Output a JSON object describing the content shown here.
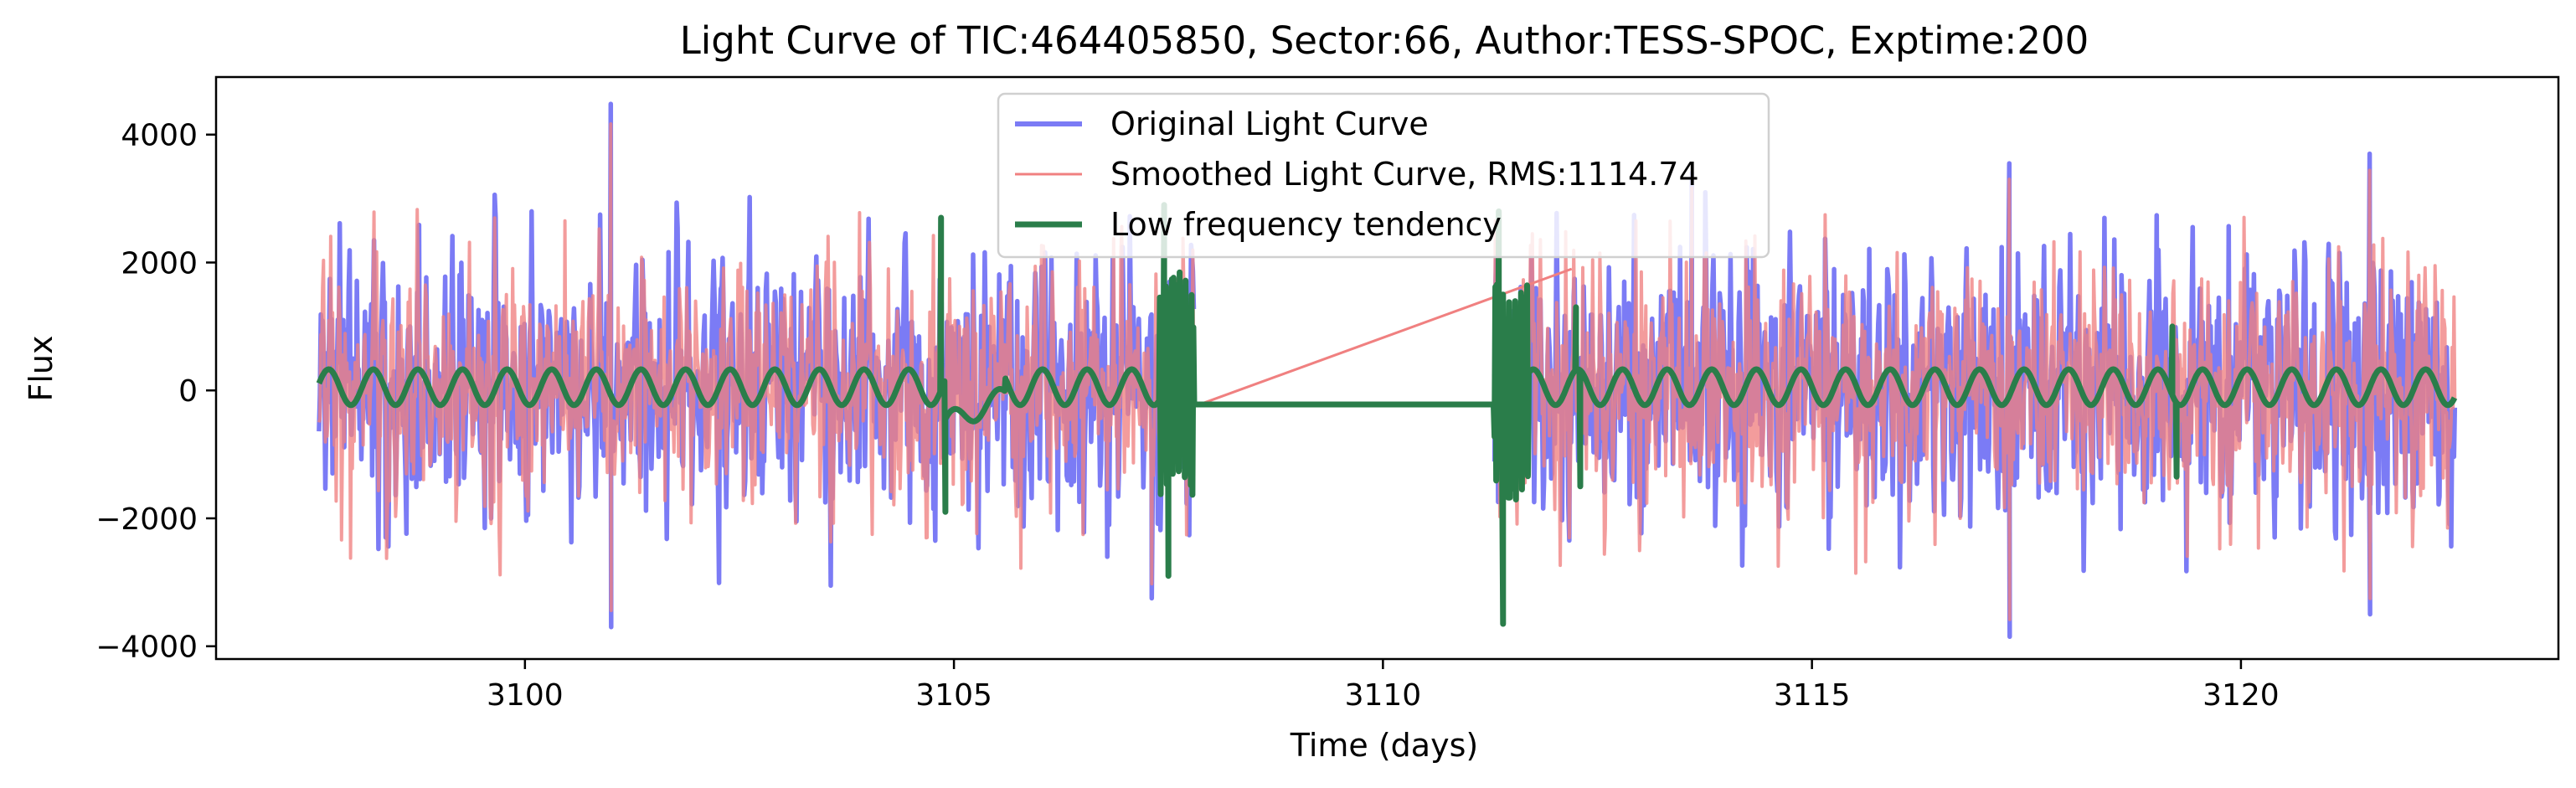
{
  "chart_data": {
    "type": "line",
    "title": "Light Curve of TIC:464405850, Sector:66, Author:TESS-SPOC, Exptime:200",
    "xlabel": "Time (days)",
    "ylabel": "Flux",
    "xlim": [
      3096.4,
      3123.7
    ],
    "ylim": [
      -4200,
      4900
    ],
    "x_ticks": [
      3100,
      3105,
      3110,
      3115,
      3120
    ],
    "y_ticks": [
      -4000,
      -2000,
      0,
      2000,
      4000
    ],
    "y_tick_labels": [
      "−4000",
      "−2000",
      "0",
      "2000",
      "4000"
    ],
    "grid": false,
    "legend_position": "top-center",
    "segments": [
      {
        "x_start": 3097.6,
        "x_end": 3107.8
      },
      {
        "x_start": 3111.3,
        "x_end": 3122.5
      }
    ],
    "series": [
      {
        "name": "Original Light Curve",
        "color": "#7b7bf5",
        "description": "high-amplitude oscillating flux, approx. ±2000 typical, extremes from -3800 to 4500",
        "peaks": [
          {
            "x": 3101.0,
            "y": 4480
          },
          {
            "x": 3113.6,
            "y": 3400
          },
          {
            "x": 3117.3,
            "y": 3550
          },
          {
            "x": 3121.5,
            "y": 3700
          },
          {
            "x": 3101.0,
            "y": -3700
          },
          {
            "x": 3117.3,
            "y": -3850
          },
          {
            "x": 3121.5,
            "y": -3500
          },
          {
            "x": 3107.3,
            "y": -3250
          }
        ]
      },
      {
        "name": "Smoothed Light Curve, RMS:1114.74",
        "color": "#f08080",
        "gap_line": [
          [
            3107.8,
            -250
          ],
          [
            3112.2,
            1900
          ]
        ]
      },
      {
        "name": "Low frequency tendency",
        "color": "#2a7d4a",
        "baseline": 50,
        "oscillation_amplitude": 280,
        "gap_level": -220,
        "spikes": [
          {
            "x": 3104.85,
            "y": 2700
          },
          {
            "x": 3104.9,
            "y": -1900
          },
          {
            "x": 3107.45,
            "y": 2900
          },
          {
            "x": 3107.5,
            "y": -2900
          },
          {
            "x": 3111.35,
            "y": 2800
          },
          {
            "x": 3111.4,
            "y": -3650
          },
          {
            "x": 3112.25,
            "y": 1300
          },
          {
            "x": 3112.3,
            "y": -1500
          },
          {
            "x": 3119.2,
            "y": 1000
          },
          {
            "x": 3119.25,
            "y": -1350
          }
        ]
      }
    ]
  }
}
